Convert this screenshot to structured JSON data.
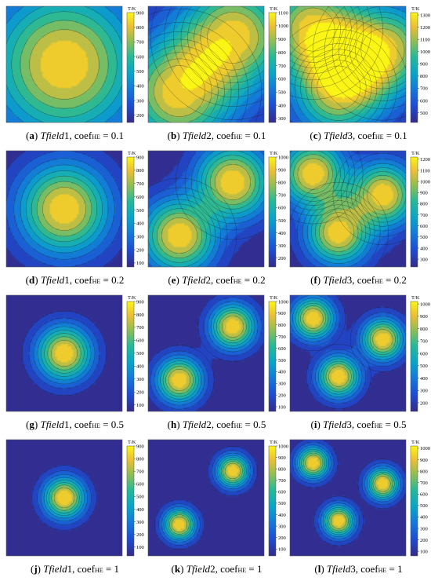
{
  "colorbar_unit": "T/K",
  "panels": [
    {
      "id": "a",
      "label": "a",
      "field": "Tfield1",
      "coef": "0.1",
      "cbar": {
        "ticks": [
          "900",
          "800",
          "700",
          "600",
          "500",
          "400",
          "300",
          "200"
        ],
        "max": 900,
        "min": 150
      },
      "chart_data": {
        "type": "heatmap",
        "title": "",
        "colorbar_label": "T/K",
        "range": [
          150,
          900
        ],
        "hot_spots": [
          {
            "x": 0.5,
            "y": 0.5,
            "peak": 900
          }
        ],
        "hot_spot_width": 0.45,
        "background": 150,
        "contour_levels": 10
      }
    },
    {
      "id": "b",
      "label": "b",
      "field": "Tfield2",
      "coef": "0.1",
      "cbar": {
        "ticks": [
          "1100",
          "1000",
          "900",
          "800",
          "700",
          "600",
          "500",
          "400",
          "300"
        ],
        "max": 1100,
        "min": 270
      },
      "chart_data": {
        "type": "heatmap",
        "title": "",
        "colorbar_label": "T/K",
        "range": [
          270,
          1100
        ],
        "hot_spots": [
          {
            "x": 0.27,
            "y": 0.27,
            "peak": 1100
          },
          {
            "x": 0.73,
            "y": 0.73,
            "peak": 1100
          }
        ],
        "hot_spot_width": 0.33,
        "background": 270,
        "contour_levels": 10
      }
    },
    {
      "id": "c",
      "label": "c",
      "field": "Tfield3",
      "coef": "0.1",
      "cbar": {
        "ticks": [
          "1300",
          "1200",
          "1100",
          "1000",
          "900",
          "800",
          "700",
          "600",
          "500"
        ],
        "max": 1320,
        "min": 420
      },
      "chart_data": {
        "type": "heatmap",
        "title": "",
        "colorbar_label": "T/K",
        "range": [
          420,
          1320
        ],
        "hot_spots": [
          {
            "x": 0.2,
            "y": 0.8,
            "peak": 1320
          },
          {
            "x": 0.8,
            "y": 0.62,
            "peak": 1320
          },
          {
            "x": 0.42,
            "y": 0.3,
            "peak": 1320
          }
        ],
        "hot_spot_width": 0.28,
        "background": 420,
        "contour_levels": 10
      }
    },
    {
      "id": "d",
      "label": "d",
      "field": "Tfield1",
      "coef": "0.2",
      "cbar": {
        "ticks": [
          "900",
          "800",
          "700",
          "600",
          "500",
          "400",
          "300",
          "200",
          "100"
        ],
        "max": 900,
        "min": 70
      },
      "chart_data": {
        "type": "heatmap",
        "title": "",
        "colorbar_label": "T/K",
        "range": [
          70,
          900
        ],
        "hot_spots": [
          {
            "x": 0.5,
            "y": 0.5,
            "peak": 900
          }
        ],
        "hot_spot_width": 0.28,
        "background": 70,
        "contour_levels": 10
      }
    },
    {
      "id": "e",
      "label": "e",
      "field": "Tfield2",
      "coef": "0.2",
      "cbar": {
        "ticks": [
          "1000",
          "900",
          "800",
          "700",
          "600",
          "500",
          "400",
          "300",
          "200"
        ],
        "max": 1000,
        "min": 130
      },
      "chart_data": {
        "type": "heatmap",
        "title": "",
        "colorbar_label": "T/K",
        "range": [
          130,
          1000
        ],
        "hot_spots": [
          {
            "x": 0.27,
            "y": 0.27,
            "peak": 1000
          },
          {
            "x": 0.73,
            "y": 0.73,
            "peak": 1000
          }
        ],
        "hot_spot_width": 0.23,
        "background": 130,
        "contour_levels": 10
      }
    },
    {
      "id": "f",
      "label": "f",
      "field": "Tfield3",
      "coef": "0.2",
      "cbar": {
        "ticks": [
          "1200",
          "1100",
          "1000",
          "900",
          "800",
          "700",
          "600",
          "500",
          "400",
          "300"
        ],
        "max": 1220,
        "min": 230
      },
      "chart_data": {
        "type": "heatmap",
        "title": "",
        "colorbar_label": "T/K",
        "range": [
          230,
          1220
        ],
        "hot_spots": [
          {
            "x": 0.2,
            "y": 0.8,
            "peak": 1220
          },
          {
            "x": 0.8,
            "y": 0.62,
            "peak": 1220
          },
          {
            "x": 0.42,
            "y": 0.3,
            "peak": 1220
          }
        ],
        "hot_spot_width": 0.2,
        "background": 230,
        "contour_levels": 10
      }
    },
    {
      "id": "g",
      "label": "g",
      "field": "Tfield1",
      "coef": "0.5",
      "cbar": {
        "ticks": [
          "900",
          "800",
          "700",
          "600",
          "500",
          "400",
          "300",
          "200",
          "100"
        ],
        "max": 900,
        "min": 50
      },
      "chart_data": {
        "type": "heatmap",
        "title": "",
        "colorbar_label": "T/K",
        "range": [
          50,
          900
        ],
        "hot_spots": [
          {
            "x": 0.5,
            "y": 0.5,
            "peak": 900
          }
        ],
        "hot_spot_width": 0.17,
        "background": 50,
        "contour_levels": 10
      }
    },
    {
      "id": "h",
      "label": "h",
      "field": "Tfield2",
      "coef": "0.5",
      "cbar": {
        "ticks": [
          "1000",
          "900",
          "800",
          "700",
          "600",
          "500",
          "400",
          "300",
          "200",
          "100"
        ],
        "max": 1000,
        "min": 60
      },
      "chart_data": {
        "type": "heatmap",
        "title": "",
        "colorbar_label": "T/K",
        "range": [
          60,
          1000
        ],
        "hot_spots": [
          {
            "x": 0.27,
            "y": 0.27,
            "peak": 1000
          },
          {
            "x": 0.73,
            "y": 0.73,
            "peak": 1000
          }
        ],
        "hot_spot_width": 0.14,
        "background": 60,
        "contour_levels": 10
      }
    },
    {
      "id": "i",
      "label": "i",
      "field": "Tfield3",
      "coef": "0.5",
      "cbar": {
        "ticks": [
          "1000",
          "900",
          "800",
          "700",
          "600",
          "500",
          "400",
          "300",
          "200"
        ],
        "max": 1020,
        "min": 130
      },
      "chart_data": {
        "type": "heatmap",
        "title": "",
        "colorbar_label": "T/K",
        "range": [
          130,
          1020
        ],
        "hot_spots": [
          {
            "x": 0.2,
            "y": 0.8,
            "peak": 1020
          },
          {
            "x": 0.8,
            "y": 0.62,
            "peak": 1020
          },
          {
            "x": 0.42,
            "y": 0.3,
            "peak": 1020
          }
        ],
        "hot_spot_width": 0.13,
        "background": 130,
        "contour_levels": 10
      }
    },
    {
      "id": "j",
      "label": "j",
      "field": "Tfield1",
      "coef": "1",
      "cbar": {
        "ticks": [
          "900",
          "800",
          "700",
          "600",
          "500",
          "400",
          "300",
          "200",
          "100"
        ],
        "max": 900,
        "min": 30
      },
      "chart_data": {
        "type": "heatmap",
        "title": "",
        "colorbar_label": "T/K",
        "range": [
          30,
          900
        ],
        "hot_spots": [
          {
            "x": 0.5,
            "y": 0.5,
            "peak": 900
          }
        ],
        "hot_spot_width": 0.13,
        "background": 30,
        "contour_levels": 10
      }
    },
    {
      "id": "k",
      "label": "k",
      "field": "Tfield2",
      "coef": "1",
      "cbar": {
        "ticks": [
          "1000",
          "900",
          "800",
          "700",
          "600",
          "500",
          "400",
          "300",
          "200",
          "100"
        ],
        "max": 1000,
        "min": 40
      },
      "chart_data": {
        "type": "heatmap",
        "title": "",
        "colorbar_label": "T/K",
        "range": [
          40,
          1000
        ],
        "hot_spots": [
          {
            "x": 0.27,
            "y": 0.27,
            "peak": 1000
          },
          {
            "x": 0.73,
            "y": 0.73,
            "peak": 1000
          }
        ],
        "hot_spot_width": 0.1,
        "background": 40,
        "contour_levels": 10
      }
    },
    {
      "id": "l",
      "label": "l",
      "field": "Tfield3",
      "coef": "1",
      "cbar": {
        "ticks": [
          "1000",
          "900",
          "800",
          "700",
          "600",
          "500",
          "400",
          "300",
          "200",
          "100"
        ],
        "max": 1020,
        "min": 60
      },
      "chart_data": {
        "type": "heatmap",
        "title": "",
        "colorbar_label": "T/K",
        "range": [
          60,
          1020
        ],
        "hot_spots": [
          {
            "x": 0.2,
            "y": 0.8,
            "peak": 1020
          },
          {
            "x": 0.8,
            "y": 0.62,
            "peak": 1020
          },
          {
            "x": 0.42,
            "y": 0.3,
            "peak": 1020
          }
        ],
        "hot_spot_width": 0.1,
        "background": 60,
        "contour_levels": 10
      }
    }
  ]
}
